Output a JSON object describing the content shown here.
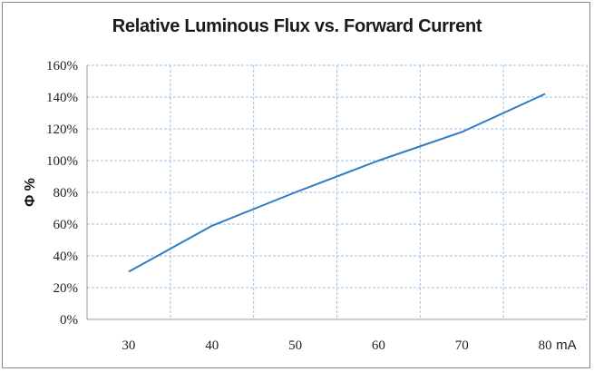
{
  "chart_data": {
    "type": "line",
    "title": "Relative Luminous Flux vs. Forward Current",
    "xlabel": "mA",
    "ylabel": "Φ %",
    "x": [
      30,
      40,
      50,
      60,
      70,
      80
    ],
    "xticks": [
      "30",
      "40",
      "50",
      "60",
      "70",
      "80"
    ],
    "yticks": [
      "0%",
      "20%",
      "40%",
      "60%",
      "80%",
      "100%",
      "120%",
      "140%",
      "160%"
    ],
    "ylim": [
      0,
      160
    ],
    "xlim": [
      25,
      85
    ],
    "series": [
      {
        "values": [
          30,
          59,
          80,
          100,
          118,
          142
        ]
      }
    ],
    "grid": true,
    "line_color": "#2f7dc2",
    "grid_color": "#9dc3e6"
  }
}
